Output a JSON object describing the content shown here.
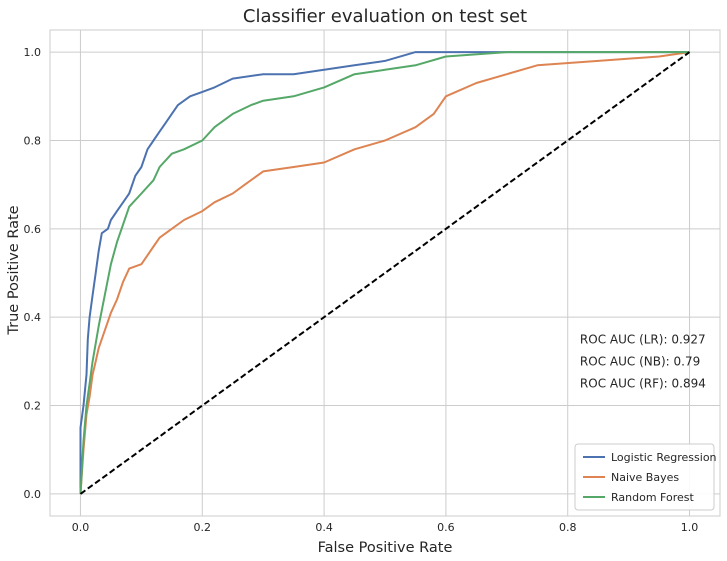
{
  "chart_data": {
    "type": "line",
    "title": "Classifier evaluation on test set",
    "xlabel": "False Positive Rate",
    "ylabel": "True Positive Rate",
    "xlim": [
      -0.05,
      1.05
    ],
    "ylim": [
      -0.05,
      1.05
    ],
    "grid": true,
    "x_ticks": [
      0.0,
      0.2,
      0.4,
      0.6,
      0.8,
      1.0
    ],
    "y_ticks": [
      0.0,
      0.2,
      0.4,
      0.6,
      0.8,
      1.0
    ],
    "x_tick_labels": [
      "0.0",
      "0.2",
      "0.4",
      "0.6",
      "0.8",
      "1.0"
    ],
    "y_tick_labels": [
      "0.0",
      "0.2",
      "0.4",
      "0.6",
      "0.8",
      "1.0"
    ],
    "legend_position": "lower right",
    "annotations": [
      {
        "text": "ROC AUC (LR): 0.927",
        "x": 0.82,
        "y": 0.35
      },
      {
        "text": "ROC AUC (NB): 0.79",
        "x": 0.82,
        "y": 0.3
      },
      {
        "text": "ROC AUC (RF): 0.894",
        "x": 0.82,
        "y": 0.25
      }
    ],
    "series": [
      {
        "name": "Logistic Regression",
        "color": "#4c72b0",
        "style": "solid",
        "points": [
          [
            0,
            0
          ],
          [
            0,
            0.15
          ],
          [
            0.005,
            0.2
          ],
          [
            0.01,
            0.27
          ],
          [
            0.012,
            0.35
          ],
          [
            0.015,
            0.4
          ],
          [
            0.02,
            0.45
          ],
          [
            0.025,
            0.5
          ],
          [
            0.03,
            0.55
          ],
          [
            0.035,
            0.59
          ],
          [
            0.045,
            0.6
          ],
          [
            0.05,
            0.62
          ],
          [
            0.06,
            0.64
          ],
          [
            0.07,
            0.66
          ],
          [
            0.08,
            0.68
          ],
          [
            0.09,
            0.72
          ],
          [
            0.1,
            0.74
          ],
          [
            0.11,
            0.78
          ],
          [
            0.12,
            0.8
          ],
          [
            0.13,
            0.82
          ],
          [
            0.14,
            0.84
          ],
          [
            0.15,
            0.86
          ],
          [
            0.16,
            0.88
          ],
          [
            0.17,
            0.89
          ],
          [
            0.18,
            0.9
          ],
          [
            0.2,
            0.91
          ],
          [
            0.22,
            0.92
          ],
          [
            0.25,
            0.94
          ],
          [
            0.3,
            0.95
          ],
          [
            0.35,
            0.95
          ],
          [
            0.4,
            0.96
          ],
          [
            0.45,
            0.97
          ],
          [
            0.5,
            0.98
          ],
          [
            0.55,
            1.0
          ],
          [
            0.65,
            1.0
          ],
          [
            1.0,
            1.0
          ]
        ]
      },
      {
        "name": "Naive Bayes",
        "color": "#dd8452",
        "style": "solid",
        "points": [
          [
            0,
            0
          ],
          [
            0.005,
            0.1
          ],
          [
            0.01,
            0.18
          ],
          [
            0.015,
            0.22
          ],
          [
            0.02,
            0.27
          ],
          [
            0.025,
            0.3
          ],
          [
            0.03,
            0.33
          ],
          [
            0.04,
            0.37
          ],
          [
            0.05,
            0.41
          ],
          [
            0.06,
            0.44
          ],
          [
            0.07,
            0.48
          ],
          [
            0.08,
            0.51
          ],
          [
            0.1,
            0.52
          ],
          [
            0.11,
            0.54
          ],
          [
            0.12,
            0.56
          ],
          [
            0.13,
            0.58
          ],
          [
            0.15,
            0.6
          ],
          [
            0.17,
            0.62
          ],
          [
            0.2,
            0.64
          ],
          [
            0.22,
            0.66
          ],
          [
            0.25,
            0.68
          ],
          [
            0.27,
            0.7
          ],
          [
            0.3,
            0.73
          ],
          [
            0.35,
            0.74
          ],
          [
            0.4,
            0.75
          ],
          [
            0.45,
            0.78
          ],
          [
            0.5,
            0.8
          ],
          [
            0.55,
            0.83
          ],
          [
            0.58,
            0.86
          ],
          [
            0.6,
            0.9
          ],
          [
            0.65,
            0.93
          ],
          [
            0.7,
            0.95
          ],
          [
            0.75,
            0.97
          ],
          [
            0.85,
            0.98
          ],
          [
            0.95,
            0.99
          ],
          [
            1.0,
            1.0
          ]
        ]
      },
      {
        "name": "Random Forest",
        "color": "#55a868",
        "style": "solid",
        "points": [
          [
            0,
            0
          ],
          [
            0.005,
            0.12
          ],
          [
            0.01,
            0.2
          ],
          [
            0.015,
            0.25
          ],
          [
            0.02,
            0.3
          ],
          [
            0.03,
            0.38
          ],
          [
            0.04,
            0.45
          ],
          [
            0.05,
            0.52
          ],
          [
            0.06,
            0.57
          ],
          [
            0.07,
            0.61
          ],
          [
            0.08,
            0.65
          ],
          [
            0.1,
            0.68
          ],
          [
            0.12,
            0.71
          ],
          [
            0.13,
            0.74
          ],
          [
            0.15,
            0.77
          ],
          [
            0.17,
            0.78
          ],
          [
            0.2,
            0.8
          ],
          [
            0.22,
            0.83
          ],
          [
            0.25,
            0.86
          ],
          [
            0.28,
            0.88
          ],
          [
            0.3,
            0.89
          ],
          [
            0.35,
            0.9
          ],
          [
            0.4,
            0.92
          ],
          [
            0.45,
            0.95
          ],
          [
            0.5,
            0.96
          ],
          [
            0.55,
            0.97
          ],
          [
            0.6,
            0.99
          ],
          [
            0.7,
            1.0
          ],
          [
            0.77,
            1.0
          ],
          [
            1.0,
            1.0
          ]
        ]
      },
      {
        "name": "",
        "color": "#000000",
        "style": "dashed",
        "points": [
          [
            0,
            0
          ],
          [
            1,
            1
          ]
        ]
      }
    ]
  }
}
